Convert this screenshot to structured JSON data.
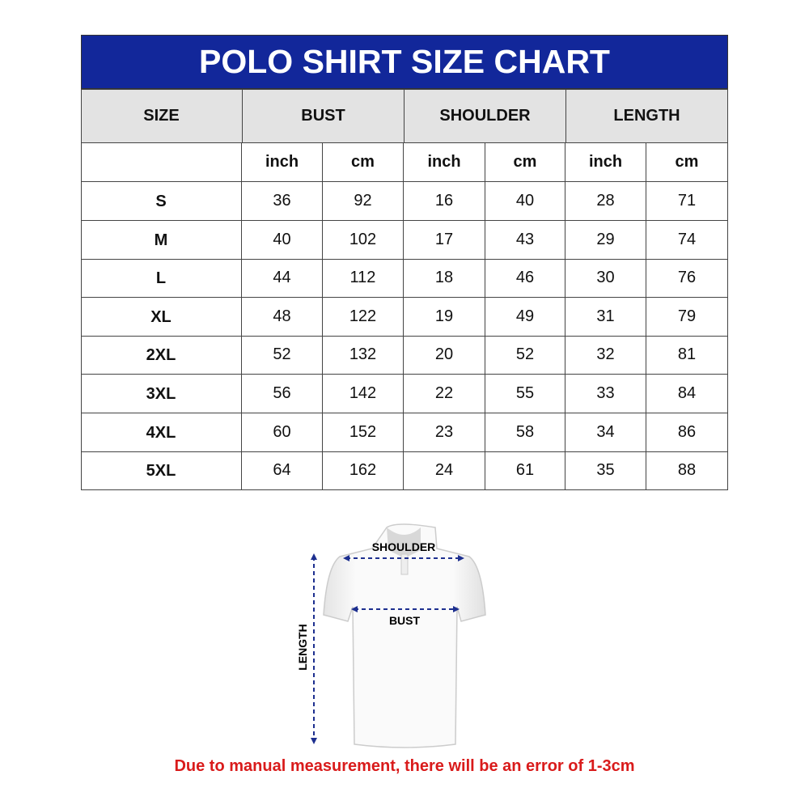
{
  "title": "POLO SHIRT SIZE CHART",
  "headers": [
    "SIZE",
    "BUST",
    "SHOULDER",
    "LENGTH"
  ],
  "subheaders": [
    "inch",
    "cm",
    "inch",
    "cm",
    "inch",
    "cm"
  ],
  "rows": [
    {
      "size": "S",
      "values": [
        "36",
        "92",
        "16",
        "40",
        "28",
        "71"
      ]
    },
    {
      "size": "M",
      "values": [
        "40",
        "102",
        "17",
        "43",
        "29",
        "74"
      ]
    },
    {
      "size": "L",
      "values": [
        "44",
        "112",
        "18",
        "46",
        "30",
        "76"
      ]
    },
    {
      "size": "XL",
      "values": [
        "48",
        "122",
        "19",
        "49",
        "31",
        "79"
      ]
    },
    {
      "size": "2XL",
      "values": [
        "52",
        "132",
        "20",
        "52",
        "32",
        "81"
      ]
    },
    {
      "size": "3XL",
      "values": [
        "56",
        "142",
        "22",
        "55",
        "33",
        "84"
      ]
    },
    {
      "size": "4XL",
      "values": [
        "60",
        "152",
        "23",
        "58",
        "34",
        "86"
      ]
    },
    {
      "size": "5XL",
      "values": [
        "64",
        "162",
        "24",
        "61",
        "35",
        "88"
      ]
    }
  ],
  "diagram": {
    "shoulder": "SHOULDER",
    "bust": "BUST",
    "length": "LENGTH"
  },
  "note": "Due to manual measurement, there will be an error of 1-3cm",
  "colors": {
    "title_bg": "#12279a",
    "header_bg": "#e3e3e3",
    "note": "#d91b1b",
    "arrow": "#1d2f8f"
  }
}
